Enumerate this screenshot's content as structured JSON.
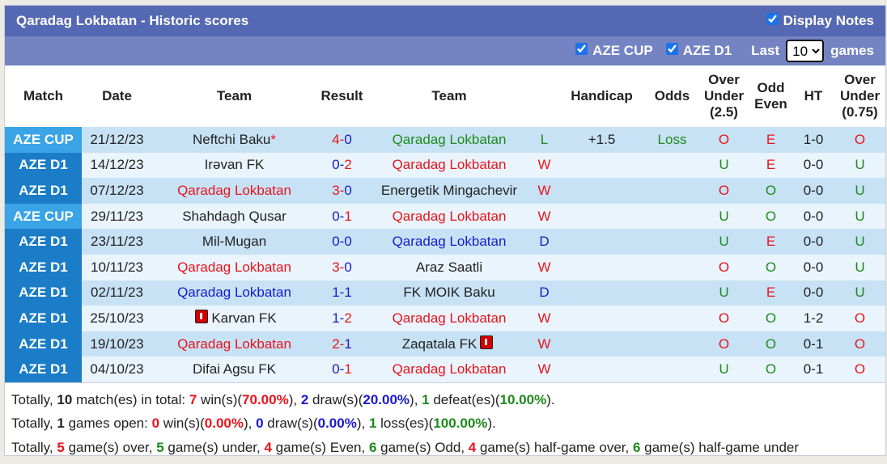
{
  "title": "Qaradag Lokbatan - Historic scores",
  "display_notes": "Display Notes",
  "filters": {
    "cup": "AZE CUP",
    "d1": "AZE D1",
    "last": "Last",
    "count": "10",
    "games": "games"
  },
  "headers": [
    "Match",
    "Date",
    "Team",
    "Result",
    "Team",
    "",
    "Handicap",
    "Odds",
    "Over Under (2.5)",
    "Odd Even",
    "HT",
    "Over Under (0.75)"
  ],
  "colors": {
    "red": "#e8141c",
    "green": "#1c8a1c",
    "blue": "#1a1acd",
    "cup": "#39a4e6",
    "d1": "#1b7cc7",
    "title_bg": "#5468b3"
  },
  "rows": [
    {
      "match": "AZE CUP",
      "date": "21/12/23",
      "home": "Neftchi Baku",
      "home_note": "*",
      "home_color": "blk",
      "h": "4",
      "a": "0",
      "hc": "red",
      "ac": "blue",
      "away": "Qaradag Lokbatan",
      "away_color": "green",
      "res": "L",
      "res_color": "green",
      "handicap": "+1.5",
      "odds": "Loss",
      "ou": "O",
      "oe": "E",
      "ht": "1-0",
      "ou2": "O"
    },
    {
      "match": "AZE D1",
      "date": "14/12/23",
      "home": "Irəvan FK",
      "home_color": "blk",
      "h": "0",
      "a": "2",
      "hc": "blue",
      "ac": "red",
      "away": "Qaradag Lokbatan",
      "away_color": "red",
      "res": "W",
      "res_color": "red",
      "handicap": "",
      "odds": "",
      "ou": "U",
      "oe": "E",
      "ht": "0-0",
      "ou2": "U"
    },
    {
      "match": "AZE D1",
      "date": "07/12/23",
      "home": "Qaradag Lokbatan",
      "home_color": "red",
      "h": "3",
      "a": "0",
      "hc": "red",
      "ac": "blue",
      "away": "Energetik Mingachevir",
      "away_color": "blk",
      "res": "W",
      "res_color": "red",
      "handicap": "",
      "odds": "",
      "ou": "O",
      "oe": "O",
      "ht": "0-0",
      "ou2": "U"
    },
    {
      "match": "AZE CUP",
      "date": "29/11/23",
      "home": "Shahdagh Qusar",
      "home_color": "blk",
      "h": "0",
      "a": "1",
      "hc": "blue",
      "ac": "red",
      "away": "Qaradag Lokbatan",
      "away_color": "red",
      "res": "W",
      "res_color": "red",
      "handicap": "",
      "odds": "",
      "ou": "U",
      "oe": "O",
      "ht": "0-0",
      "ou2": "U"
    },
    {
      "match": "AZE D1",
      "date": "23/11/23",
      "home": "Mil-Mugan",
      "home_color": "blk",
      "h": "0",
      "a": "0",
      "hc": "blue",
      "ac": "blue",
      "away": "Qaradag Lokbatan",
      "away_color": "blue",
      "res": "D",
      "res_color": "blue",
      "handicap": "",
      "odds": "",
      "ou": "U",
      "oe": "E",
      "ht": "0-0",
      "ou2": "U"
    },
    {
      "match": "AZE D1",
      "date": "10/11/23",
      "home": "Qaradag Lokbatan",
      "home_color": "red",
      "h": "3",
      "a": "0",
      "hc": "red",
      "ac": "blue",
      "away": "Araz Saatli",
      "away_color": "blk",
      "res": "W",
      "res_color": "red",
      "handicap": "",
      "odds": "",
      "ou": "O",
      "oe": "O",
      "ht": "0-0",
      "ou2": "U"
    },
    {
      "match": "AZE D1",
      "date": "02/11/23",
      "home": "Qaradag Lokbatan",
      "home_color": "blue",
      "h": "1",
      "a": "1",
      "hc": "blue",
      "ac": "blue",
      "away": "FK MOIK Baku",
      "away_color": "blk",
      "res": "D",
      "res_color": "blue",
      "handicap": "",
      "odds": "",
      "ou": "U",
      "oe": "E",
      "ht": "0-0",
      "ou2": "U"
    },
    {
      "match": "AZE D1",
      "date": "25/10/23",
      "home": "Karvan FK",
      "home_card": true,
      "home_color": "blk",
      "h": "1",
      "a": "2",
      "hc": "blue",
      "ac": "red",
      "away": "Qaradag Lokbatan",
      "away_color": "red",
      "res": "W",
      "res_color": "red",
      "handicap": "",
      "odds": "",
      "ou": "O",
      "oe": "O",
      "ht": "1-2",
      "ou2": "O"
    },
    {
      "match": "AZE D1",
      "date": "19/10/23",
      "home": "Qaradag Lokbatan",
      "home_color": "red",
      "h": "2",
      "a": "1",
      "hc": "red",
      "ac": "blue",
      "away": "Zaqatala FK",
      "away_card": true,
      "away_color": "blk",
      "res": "W",
      "res_color": "red",
      "handicap": "",
      "odds": "",
      "ou": "O",
      "oe": "O",
      "ht": "0-1",
      "ou2": "O"
    },
    {
      "match": "AZE D1",
      "date": "04/10/23",
      "home": "Difai Agsu FK",
      "home_color": "blk",
      "h": "0",
      "a": "1",
      "hc": "blue",
      "ac": "red",
      "away": "Qaradag Lokbatan",
      "away_color": "red",
      "res": "W",
      "res_color": "red",
      "handicap": "",
      "odds": "",
      "ou": "U",
      "oe": "O",
      "ht": "0-1",
      "ou2": "O"
    }
  ],
  "summary": [
    [
      [
        "Totally, ",
        "blk"
      ],
      [
        "10",
        "b"
      ],
      [
        " match(es) in total: ",
        "blk"
      ],
      [
        "7",
        "red"
      ],
      [
        " win(s)(",
        "blk"
      ],
      [
        "70.00%",
        "red"
      ],
      [
        "), ",
        "blk"
      ],
      [
        "2",
        "blue"
      ],
      [
        " draw(s)(",
        "blk"
      ],
      [
        "20.00%",
        "blue"
      ],
      [
        "), ",
        "blk"
      ],
      [
        "1",
        "green"
      ],
      [
        " defeat(es)(",
        "blk"
      ],
      [
        "10.00%",
        "green"
      ],
      [
        ").",
        "blk"
      ]
    ],
    [
      [
        "Totally, ",
        "blk"
      ],
      [
        "1",
        "b"
      ],
      [
        " games open: ",
        "blk"
      ],
      [
        "0",
        "red"
      ],
      [
        " win(s)(",
        "blk"
      ],
      [
        "0.00%",
        "red"
      ],
      [
        "), ",
        "blk"
      ],
      [
        "0",
        "blue"
      ],
      [
        " draw(s)(",
        "blk"
      ],
      [
        "0.00%",
        "blue"
      ],
      [
        "), ",
        "blk"
      ],
      [
        "1",
        "green"
      ],
      [
        " loss(es)(",
        "blk"
      ],
      [
        "100.00%",
        "green"
      ],
      [
        ").",
        "blk"
      ]
    ],
    [
      [
        "Totally, ",
        "blk"
      ],
      [
        "5",
        "red"
      ],
      [
        " game(s) over, ",
        "blk"
      ],
      [
        "5",
        "green"
      ],
      [
        " game(s) under, ",
        "blk"
      ],
      [
        "4",
        "red"
      ],
      [
        " game(s) Even, ",
        "blk"
      ],
      [
        "6",
        "green"
      ],
      [
        " game(s) Odd, ",
        "blk"
      ],
      [
        "4",
        "red"
      ],
      [
        " game(s) half-game over, ",
        "blk"
      ],
      [
        "6",
        "green"
      ],
      [
        " game(s) half-game under",
        "blk"
      ]
    ]
  ]
}
